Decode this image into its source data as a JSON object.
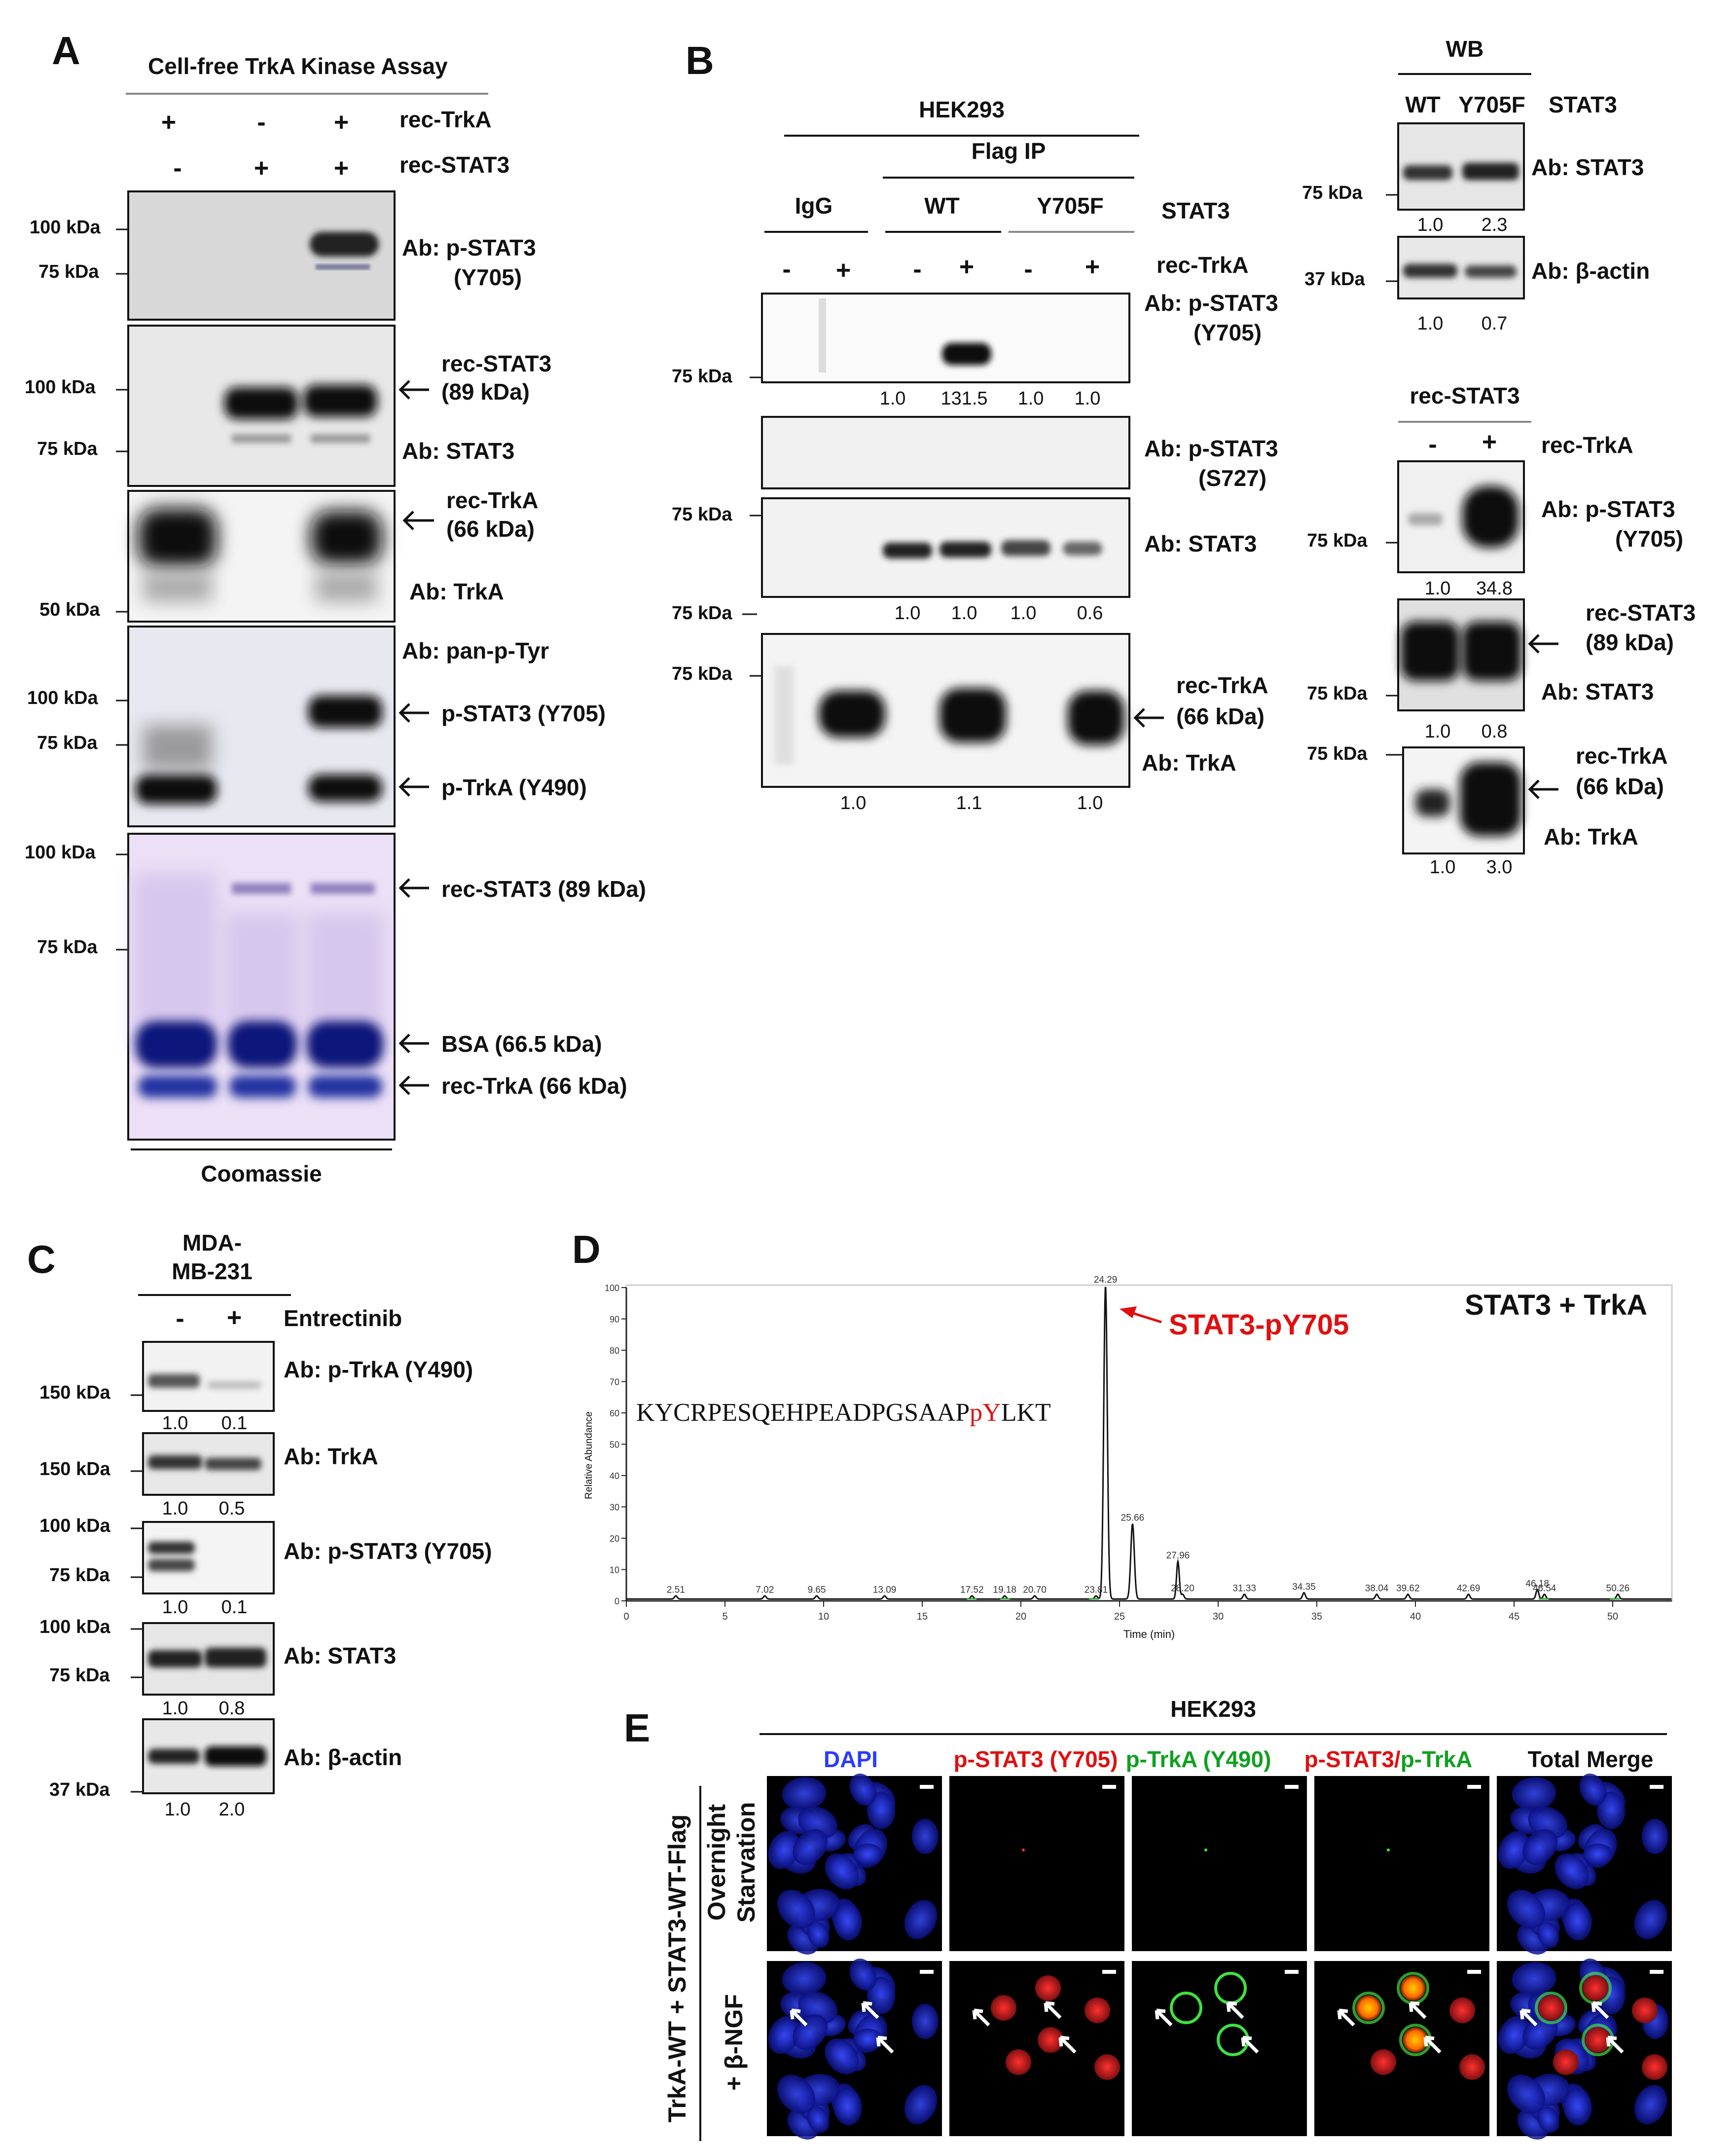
{
  "panelA": {
    "letter": "A",
    "title": "Cell-free TrkA Kinase Assay",
    "row1": {
      "label": "rec-TrkA",
      "signs": [
        "+",
        "-",
        "+"
      ]
    },
    "row2": {
      "label": "rec-STAT3",
      "signs": [
        "-",
        "+",
        "+"
      ]
    },
    "blot1": {
      "markers": [
        "100 kDa",
        "75 kDa"
      ],
      "ab": "Ab: p-STAT3",
      "ab2": "(Y705)"
    },
    "blot2": {
      "markers": [
        "100 kDa",
        "75 kDa"
      ],
      "band": "rec-STAT3",
      "band2": "(89 kDa)",
      "ab": "Ab: STAT3"
    },
    "blot3": {
      "markers": [
        "50 kDa"
      ],
      "band": "rec-TrkA",
      "band2": "(66 kDa)",
      "ab": "Ab: TrkA"
    },
    "blot4": {
      "markers": [
        "100 kDa",
        "75 kDa"
      ],
      "ab": "Ab: pan-p-Tyr",
      "band1": "p-STAT3 (Y705)",
      "band2": "p-TrkA (Y490)"
    },
    "blot5": {
      "markers": [
        "100 kDa",
        "75 kDa"
      ],
      "band1": "rec-STAT3 (89 kDa)",
      "band2": "BSA (66.5 kDa)",
      "band3": "rec-TrkA (66 kDa)",
      "footer": "Coomassie"
    }
  },
  "panelB": {
    "letter": "B",
    "cell": "HEK293",
    "ip": "Flag IP",
    "groups": [
      "IgG",
      "WT",
      "Y705F"
    ],
    "stat3": "STAT3",
    "trka_label": "rec-TrkA",
    "signs": [
      "-",
      "+",
      "-",
      "+",
      "-",
      "+"
    ],
    "blot1": {
      "ab": "Ab: p-STAT3",
      "ab2": "(Y705)",
      "marker": "75 kDa",
      "quant": [
        "1.0",
        "131.5",
        "1.0",
        "1.0"
      ]
    },
    "blot2": {
      "ab": "Ab: p-STAT3",
      "ab2": "(S727)"
    },
    "blot3": {
      "ab": "Ab: STAT3",
      "markers": [
        "75 kDa",
        "75 kDa"
      ],
      "quant": [
        "1.0",
        "1.0",
        "1.0",
        "0.6"
      ]
    },
    "blot4": {
      "marker": "75 kDa",
      "band": "rec-TrkA",
      "band2": "(66 kDa)",
      "ab": "Ab: TrkA",
      "quant": [
        "1.0",
        "1.1",
        "1.0"
      ]
    },
    "wb": {
      "title": "WB",
      "lanes": [
        "WT",
        "Y705F"
      ],
      "stat3": "STAT3",
      "blot1": {
        "marker": "75 kDa",
        "ab": "Ab: STAT3",
        "quant": [
          "1.0",
          "2.3"
        ]
      },
      "blot2": {
        "marker": "37 kDa",
        "ab": "Ab: β-actin",
        "quant": [
          "1.0",
          "0.7"
        ]
      }
    },
    "rec": {
      "title": "rec-STAT3",
      "signs": [
        "-",
        "+"
      ],
      "trka_label": "rec-TrkA",
      "blot1": {
        "marker": "75 kDa",
        "ab": "Ab: p-STAT3",
        "ab2": "(Y705)",
        "quant": [
          "1.0",
          "34.8"
        ]
      },
      "blot2": {
        "marker": "75 kDa",
        "band": "rec-STAT3",
        "band2": "(89 kDa)",
        "ab": "Ab: STAT3",
        "quant": [
          "1.0",
          "0.8"
        ]
      },
      "blot3": {
        "marker": "75 kDa",
        "band": "rec-TrkA",
        "band2": "(66 kDa)",
        "ab": "Ab: TrkA",
        "quant": [
          "1.0",
          "3.0"
        ]
      }
    }
  },
  "panelC": {
    "letter": "C",
    "cell1": "MDA-",
    "cell2": "MB-231",
    "signs": [
      "-",
      "+"
    ],
    "drug": "Entrectinib",
    "blots": [
      {
        "marker": "150 kDa",
        "ab": "Ab: p-TrkA (Y490)",
        "quant": [
          "1.0",
          "0.1"
        ]
      },
      {
        "marker": "150 kDa",
        "ab": "Ab: TrkA",
        "quant": [
          "1.0",
          "0.5"
        ]
      },
      {
        "markers": [
          "100 kDa",
          "75 kDa"
        ],
        "ab": "Ab: p-STAT3 (Y705)",
        "quant": [
          "1.0",
          "0.1"
        ]
      },
      {
        "markers": [
          "100 kDa",
          "75 kDa"
        ],
        "ab": "Ab: STAT3",
        "quant": [
          "1.0",
          "0.8"
        ]
      },
      {
        "marker": "37 kDa",
        "ab": "Ab: β-actin",
        "quant": [
          "1.0",
          "2.0"
        ]
      }
    ]
  },
  "panelD": {
    "letter": "D",
    "annotation": "STAT3-pY705",
    "legend": "STAT3 + TrkA",
    "peptide_prefix": "KYCRPESQEHPEADPGSAAP",
    "peptide_mod": "pY",
    "peptide_suffix": "LKT",
    "ylabel": "Relative Abundance",
    "xlabel": "Time (min)",
    "xticks": [
      "0",
      "5",
      "10",
      "15",
      "20",
      "25",
      "30",
      "35",
      "40",
      "45",
      "50"
    ],
    "yticks": [
      "0",
      "10",
      "20",
      "30",
      "40",
      "50",
      "60",
      "70",
      "80",
      "90",
      "100"
    ]
  },
  "chart_data": {
    "type": "line",
    "xlabel": "Time (min)",
    "ylabel": "Relative Abundance",
    "xlim": [
      0,
      53
    ],
    "ylim": [
      0,
      100
    ],
    "series": [
      {
        "x": [
          2.51,
          7.02,
          9.65,
          13.09,
          17.52,
          19.18,
          20.7,
          23.81,
          24.29,
          25.66,
          27.96,
          28.2,
          31.33,
          34.35,
          38.04,
          39.62,
          42.69,
          46.18,
          46.54,
          50.26
        ],
        "y": [
          1,
          1,
          1,
          1,
          1,
          1,
          1,
          1,
          100,
          24,
          12,
          1.5,
          1.5,
          2,
          1.5,
          1.5,
          1.5,
          3,
          1.5,
          1.5
        ]
      }
    ],
    "peak_labels": [
      "2.51",
      "7.02",
      "9.65",
      "13.09",
      "17.52",
      "19.18",
      "20.70",
      "23.81",
      "24.29",
      "25.66",
      "27.96",
      "28.20",
      "31.33",
      "34.35",
      "38.04",
      "39.62",
      "42.69",
      "46.18",
      "46.54",
      "50.26"
    ],
    "annotations": [
      "STAT3-pY705",
      "STAT3 + TrkA"
    ]
  },
  "panelE": {
    "letter": "E",
    "cell": "HEK293",
    "columns": [
      "DAPI",
      "p-STAT3  (Y705)",
      "p-TrkA  (Y490)",
      "p-STAT3/",
      "p-TrkA",
      "Total Merge"
    ],
    "row_labels": [
      "Overnight",
      "Starvation",
      "+ β-NGF"
    ],
    "side_label": "TrkA-WT + STAT3-WT-Flag",
    "colors": {
      "dapi": "#2a3cff",
      "red": "#ff2020",
      "green": "#20c030"
    }
  }
}
